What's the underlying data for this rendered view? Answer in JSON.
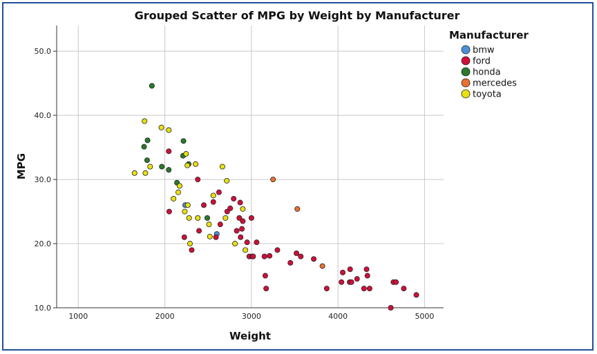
{
  "chart_data": {
    "type": "scatter",
    "title": "Grouped Scatter of MPG by Weight by Manufacturer",
    "xlabel": "Weight",
    "ylabel": "MPG",
    "xlim": [
      750,
      5220
    ],
    "ylim": [
      10,
      54
    ],
    "xticks": [
      1000,
      2000,
      3000,
      4000,
      5000
    ],
    "yticks": [
      10,
      20,
      30,
      40,
      50
    ],
    "ytick_labels": [
      "10.0",
      "20.0",
      "30.0",
      "40.0",
      "50.0"
    ],
    "grid": true,
    "legend": {
      "title": "Manufacturer",
      "position": "right"
    },
    "series": [
      {
        "name": "bmw",
        "color": "#4a90d9",
        "points": [
          [
            2235,
            26
          ],
          [
            2600,
            21.5
          ]
        ]
      },
      {
        "name": "ford",
        "color": "#d0103a",
        "points": [
          [
            2045,
            34.4
          ],
          [
            2050,
            25
          ],
          [
            2225,
            21
          ],
          [
            2310,
            19
          ],
          [
            2380,
            30
          ],
          [
            2395,
            22
          ],
          [
            2450,
            26
          ],
          [
            2560,
            26.5
          ],
          [
            2590,
            21
          ],
          [
            2625,
            28
          ],
          [
            2640,
            23
          ],
          [
            2720,
            25
          ],
          [
            2755,
            25.5
          ],
          [
            2795,
            27
          ],
          [
            2830,
            22
          ],
          [
            2860,
            24
          ],
          [
            2870,
            26.4
          ],
          [
            2875,
            21
          ],
          [
            2890,
            22.3
          ],
          [
            2900,
            23.5
          ],
          [
            2950,
            20.2
          ],
          [
            2975,
            18
          ],
          [
            3000,
            24
          ],
          [
            3010,
            18
          ],
          [
            3020,
            18
          ],
          [
            3060,
            20.2
          ],
          [
            3150,
            18
          ],
          [
            3160,
            15
          ],
          [
            3170,
            13
          ],
          [
            3210,
            18.1
          ],
          [
            3300,
            19
          ],
          [
            3450,
            17
          ],
          [
            3520,
            18.5
          ],
          [
            3570,
            18
          ],
          [
            3720,
            17.6
          ],
          [
            3870,
            13
          ],
          [
            4040,
            14
          ],
          [
            4055,
            15.5
          ],
          [
            4135,
            14
          ],
          [
            4140,
            16
          ],
          [
            4155,
            14
          ],
          [
            4220,
            14.5
          ],
          [
            4300,
            13
          ],
          [
            4330,
            16
          ],
          [
            4340,
            15
          ],
          [
            4365,
            13
          ],
          [
            4610,
            10
          ],
          [
            4640,
            14
          ],
          [
            4670,
            14
          ],
          [
            4760,
            13
          ],
          [
            4905,
            12
          ]
        ]
      },
      {
        "name": "honda",
        "color": "#2a7a2a",
        "points": [
          [
            1760,
            35.1
          ],
          [
            1795,
            33
          ],
          [
            1800,
            36.1
          ],
          [
            1850,
            44.6
          ],
          [
            1965,
            32
          ],
          [
            2045,
            31.5
          ],
          [
            2140,
            29.5
          ],
          [
            2210,
            33.7
          ],
          [
            2215,
            36
          ],
          [
            2275,
            32.4
          ],
          [
            2490,
            24
          ]
        ]
      },
      {
        "name": "mercedes",
        "color": "#e87030",
        "points": [
          [
            3250,
            30
          ],
          [
            3530,
            25.4
          ],
          [
            3820,
            16.5
          ]
        ]
      },
      {
        "name": "toyota",
        "color": "#e8e010",
        "points": [
          [
            1650,
            31
          ],
          [
            1765,
            39.1
          ],
          [
            1775,
            31
          ],
          [
            1830,
            32
          ],
          [
            1960,
            38.1
          ],
          [
            2045,
            37.7
          ],
          [
            2100,
            27
          ],
          [
            2155,
            28
          ],
          [
            2170,
            29
          ],
          [
            2230,
            25
          ],
          [
            2245,
            34
          ],
          [
            2260,
            32.2
          ],
          [
            2265,
            26
          ],
          [
            2280,
            24
          ],
          [
            2290,
            20
          ],
          [
            2355,
            32.4
          ],
          [
            2380,
            24
          ],
          [
            2510,
            23
          ],
          [
            2520,
            21.1
          ],
          [
            2560,
            27.5
          ],
          [
            2665,
            32
          ],
          [
            2700,
            24
          ],
          [
            2715,
            29.8
          ],
          [
            2810,
            20
          ],
          [
            2900,
            25.4
          ],
          [
            2930,
            19
          ]
        ]
      }
    ]
  }
}
